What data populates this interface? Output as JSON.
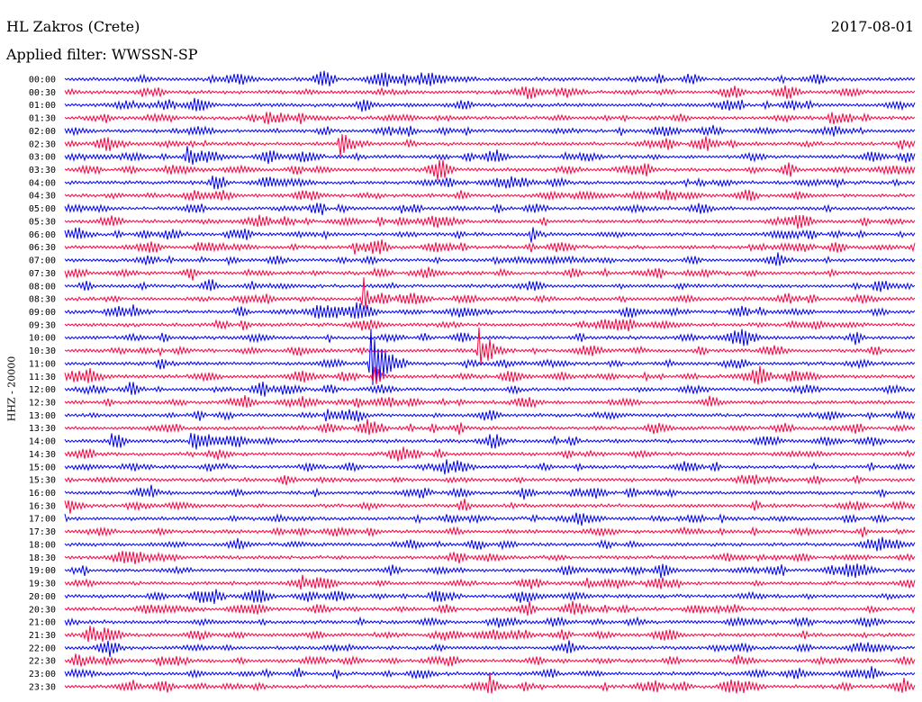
{
  "header": {
    "station": "HL Zakros (Crete)",
    "date": "2017-08-01",
    "filter": "Applied filter: WWSSN-SP"
  },
  "side_label": "HHZ - 20000",
  "colors": {
    "even_row": "#0000ff",
    "odd_row": "#ff0040",
    "text": "#000000"
  },
  "chart_data": {
    "type": "line",
    "title": "HL Zakros (Crete)",
    "subtitle": "Applied filter: WWSSN-SP",
    "date": "2017-08-01",
    "ylabel": "HHZ - 20000",
    "xlabel": "",
    "x_range_minutes": [
      0,
      30
    ],
    "row_labels": [
      "00:00",
      "00:30",
      "01:00",
      "01:30",
      "02:00",
      "02:30",
      "03:00",
      "03:30",
      "04:00",
      "04:30",
      "05:00",
      "05:30",
      "06:00",
      "06:30",
      "07:00",
      "07:30",
      "08:00",
      "08:30",
      "09:00",
      "09:30",
      "10:00",
      "10:30",
      "11:00",
      "11:30",
      "12:00",
      "12:30",
      "13:00",
      "13:30",
      "14:00",
      "14:30",
      "15:00",
      "15:30",
      "16:00",
      "16:30",
      "17:00",
      "17:30",
      "18:00",
      "18:30",
      "19:00",
      "19:30",
      "20:00",
      "20:30",
      "21:00",
      "21:30",
      "22:00",
      "22:30",
      "23:00",
      "23:30"
    ],
    "events": [
      {
        "row": "02:30",
        "minute": 9.7,
        "amplitude": 14,
        "duration_min": 1.2
      },
      {
        "row": "03:00",
        "minute": 4.3,
        "amplitude": 9,
        "duration_min": 1.0
      },
      {
        "row": "06:00",
        "minute": 16.4,
        "amplitude": 14,
        "duration_min": 0.6
      },
      {
        "row": "08:30",
        "minute": 10.5,
        "amplitude": 35,
        "duration_min": 0.3
      },
      {
        "row": "09:00",
        "minute": 2.3,
        "amplitude": 10,
        "duration_min": 0.8
      },
      {
        "row": "10:30",
        "minute": 14.6,
        "amplitude": 30,
        "duration_min": 0.4
      },
      {
        "row": "10:30",
        "minute": 14.9,
        "amplitude": 14,
        "duration_min": 1.0
      },
      {
        "row": "11:00",
        "minute": 10.8,
        "amplitude": 40,
        "duration_min": 1.3
      },
      {
        "row": "11:30",
        "minute": 10.9,
        "amplitude": 20,
        "duration_min": 0.6
      },
      {
        "row": "13:00",
        "minute": 9.2,
        "amplitude": 7,
        "duration_min": 1.4
      },
      {
        "row": "14:00",
        "minute": 4.4,
        "amplitude": 12,
        "duration_min": 1.8
      },
      {
        "row": "14:00",
        "minute": 1.6,
        "amplitude": 8,
        "duration_min": 0.8
      },
      {
        "row": "16:00",
        "minute": 3.0,
        "amplitude": 8,
        "duration_min": 0.6
      },
      {
        "row": "19:00",
        "minute": 21.0,
        "amplitude": 8,
        "duration_min": 0.4
      },
      {
        "row": "23:30",
        "minute": 15.0,
        "amplitude": 10,
        "duration_min": 0.6
      },
      {
        "row": "23:00",
        "minute": 28.5,
        "amplitude": 8,
        "duration_min": 0.6
      }
    ]
  }
}
